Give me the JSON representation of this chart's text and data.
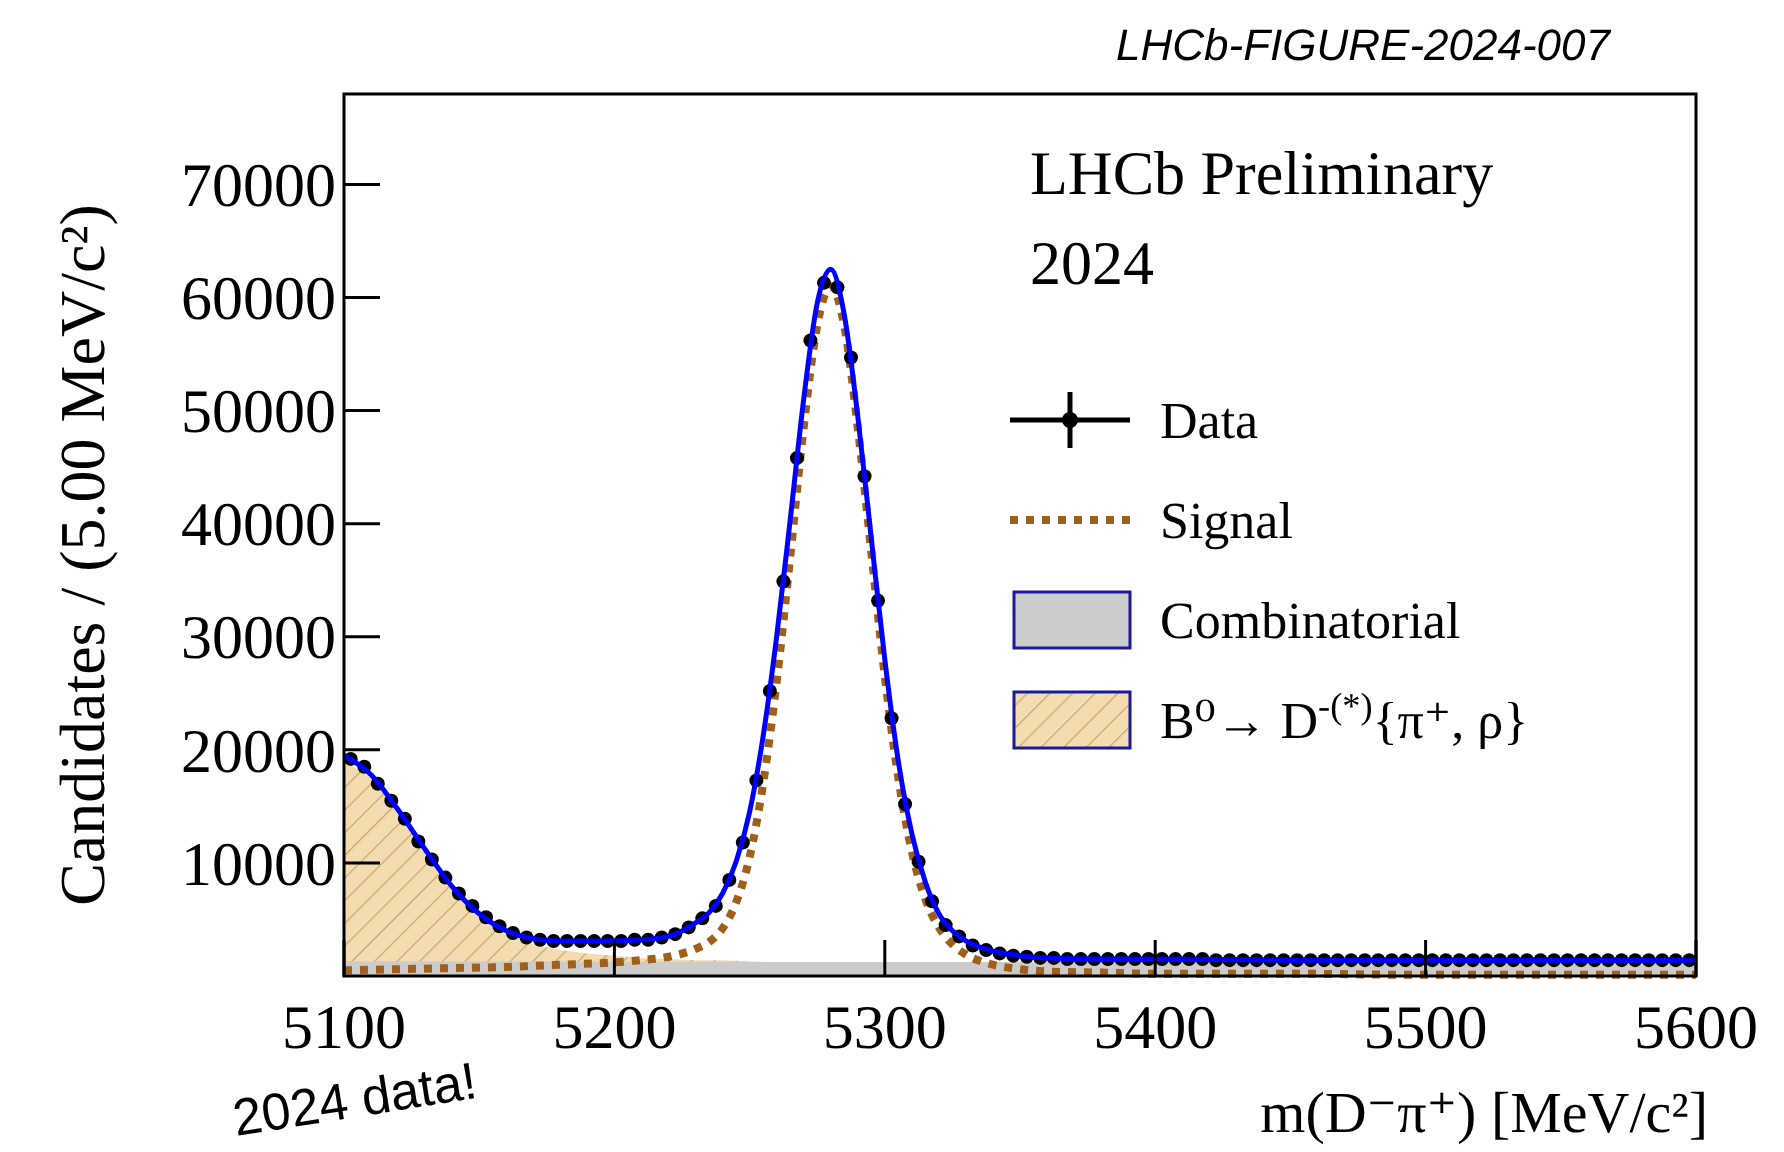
{
  "chart_data": {
    "type": "scatter",
    "xlabel": "m(D⁻π⁺) [MeV/c²]",
    "ylabel": "Candidates / (5.00 MeV/c²)",
    "annotations": [
      "LHCb-FIGURE-2024-007",
      "LHCb Preliminary",
      "2024",
      "2024 data!"
    ],
    "xlim": [
      5100,
      5600
    ],
    "xticks": [
      5100,
      5200,
      5300,
      5400,
      5500,
      5600
    ],
    "ylim": [
      0,
      78000
    ],
    "yticks": [
      10000,
      20000,
      30000,
      40000,
      50000,
      60000,
      70000
    ],
    "legend": "right",
    "grid": false,
    "series": [
      {
        "name": "B⁰→ D$^{-(*)}${π⁺, ρ}",
        "type": "area",
        "color": "#f3ddb0",
        "x": [
          5100,
          5110,
          5120,
          5130,
          5140,
          5150,
          5160,
          5170,
          5180,
          5190,
          5200,
          5210,
          5220,
          5230,
          5240,
          5250
        ],
        "values": [
          19000,
          17500,
          14500,
          11000,
          7700,
          5200,
          3700,
          2800,
          2300,
          2000,
          1800,
          1600,
          1500,
          1400,
          1400,
          1300
        ]
      },
      {
        "name": "Combinatorial",
        "type": "area",
        "color": "#cccccc",
        "x": [
          5100,
          5600
        ],
        "values": [
          1300,
          1200
        ]
      },
      {
        "name": "Signal",
        "type": "line",
        "line_style": "dotted",
        "color": "#a0601a",
        "x": [
          5100,
          5120,
          5140,
          5160,
          5180,
          5200,
          5210,
          5220,
          5230,
          5235,
          5240,
          5245,
          5250,
          5255,
          5260,
          5265,
          5270,
          5275,
          5280,
          5285,
          5290,
          5295,
          5300,
          5305,
          5310,
          5315,
          5320,
          5325,
          5330,
          5340,
          5350,
          5360,
          5380,
          5400,
          5450,
          5500,
          5600
        ],
        "values": [
          500,
          600,
          700,
          800,
          1000,
          1200,
          1400,
          1700,
          2400,
          3000,
          4200,
          6500,
          10500,
          17000,
          26000,
          37000,
          48500,
          57500,
          61000,
          57500,
          48500,
          37500,
          26500,
          17500,
          11000,
          6800,
          4300,
          2800,
          1900,
          1000,
          600,
          400,
          300,
          200,
          200,
          100,
          100
        ]
      },
      {
        "name": "Data",
        "marker": "circle",
        "color": "#000000",
        "x": [
          5102.5,
          5107.5,
          5112.5,
          5117.5,
          5122.5,
          5127.5,
          5132.5,
          5137.5,
          5142.5,
          5147.5,
          5152.5,
          5157.5,
          5162.5,
          5167.5,
          5172.5,
          5177.5,
          5182.5,
          5187.5,
          5192.5,
          5197.5,
          5202.5,
          5207.5,
          5212.5,
          5217.5,
          5222.5,
          5227.5,
          5232.5,
          5237.5,
          5242.5,
          5247.5,
          5252.5,
          5257.5,
          5262.5,
          5267.5,
          5272.5,
          5277.5,
          5282.5,
          5287.5,
          5292.5,
          5297.5,
          5302.5,
          5307.5,
          5312.5,
          5317.5,
          5322.5,
          5327.5,
          5332.5,
          5337.5,
          5342.5,
          5347.5,
          5352.5,
          5357.5,
          5362.5,
          5367.5,
          5372.5,
          5377.5,
          5382.5,
          5387.5,
          5392.5,
          5397.5,
          5402.5,
          5407.5,
          5412.5,
          5417.5,
          5422.5,
          5427.5,
          5432.5,
          5437.5,
          5442.5,
          5447.5,
          5452.5,
          5457.5,
          5462.5,
          5467.5,
          5472.5,
          5477.5,
          5482.5,
          5487.5,
          5492.5,
          5497.5,
          5502.5,
          5507.5,
          5512.5,
          5517.5,
          5522.5,
          5527.5,
          5532.5,
          5537.5,
          5542.5,
          5547.5,
          5552.5,
          5557.5,
          5562.5,
          5567.5,
          5572.5,
          5577.5,
          5582.5,
          5587.5,
          5592.5,
          5597.5
        ],
        "values": [
          19200,
          18500,
          17000,
          15500,
          13900,
          11900,
          10300,
          8700,
          7300,
          6200,
          5200,
          4400,
          3800,
          3400,
          3200,
          3100,
          3100,
          3100,
          3100,
          3100,
          3100,
          3200,
          3200,
          3400,
          3700,
          4300,
          5100,
          6200,
          8500,
          11800,
          17300,
          25200,
          34900,
          45800,
          56200,
          61300,
          60900,
          54700,
          44200,
          33200,
          22800,
          15200,
          10100,
          6600,
          4500,
          3500,
          2700,
          2300,
          2000,
          1800,
          1700,
          1600,
          1600,
          1500,
          1500,
          1500,
          1500,
          1500,
          1500,
          1500,
          1500,
          1500,
          1500,
          1500,
          1400,
          1400,
          1400,
          1400,
          1400,
          1400,
          1400,
          1400,
          1400,
          1400,
          1400,
          1400,
          1400,
          1400,
          1400,
          1400,
          1400,
          1400,
          1400,
          1400,
          1400,
          1400,
          1400,
          1400,
          1400,
          1400,
          1400,
          1400,
          1400,
          1400,
          1400,
          1400,
          1400,
          1400,
          1400,
          1400
        ]
      },
      {
        "type": "line",
        "line_style": "solid",
        "color": "#0000ff",
        "x": [
          5100,
          5110,
          5120,
          5130,
          5140,
          5150,
          5160,
          5170,
          5180,
          5190,
          5200,
          5210,
          5220,
          5230,
          5235,
          5240,
          5245,
          5250,
          5255,
          5260,
          5265,
          5270,
          5275,
          5280,
          5285,
          5290,
          5295,
          5300,
          5305,
          5310,
          5315,
          5320,
          5325,
          5330,
          5340,
          5350,
          5360,
          5380,
          5400,
          5450,
          5500,
          5550,
          5600
        ],
        "values": [
          19500,
          17800,
          14700,
          11200,
          7900,
          5500,
          4000,
          3300,
          3100,
          3100,
          3100,
          3200,
          3500,
          4700,
          5600,
          7300,
          10100,
          14500,
          21200,
          30000,
          40300,
          51000,
          59500,
          62500,
          58500,
          49500,
          38700,
          28000,
          19000,
          12600,
          8300,
          5500,
          4000,
          3100,
          2200,
          1800,
          1600,
          1500,
          1500,
          1400,
          1400,
          1400,
          1400
        ]
      }
    ]
  }
}
